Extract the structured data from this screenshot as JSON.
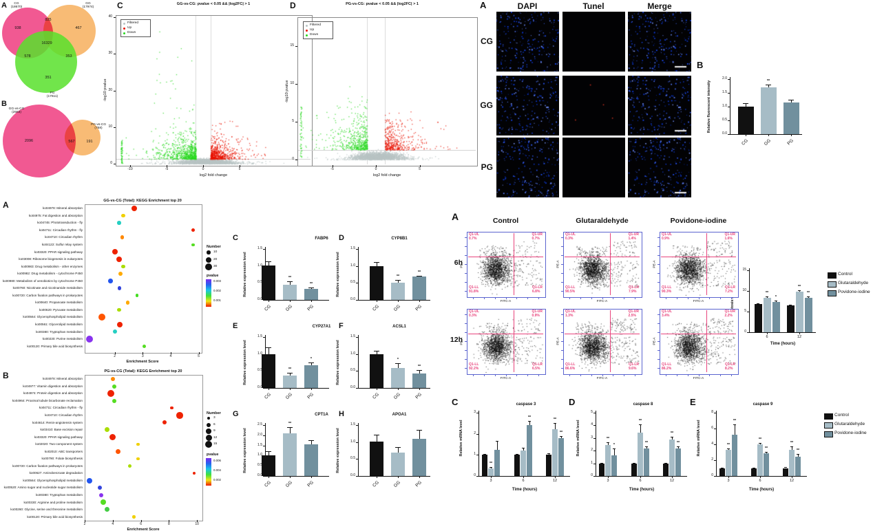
{
  "colors": {
    "control_black": "#111111",
    "glutaraldehyde_gray": "#a6bcc6",
    "povidone_slate": "#71909e",
    "venn_pink": "#f0508c",
    "venn_orange": "#f8b86e",
    "venn_green": "#58e12c",
    "volcano_up_red": "#e81400",
    "volcano_down_green": "#27d81e",
    "volcano_filtered_gray": "#b9c4c4",
    "flow_axis_blue": "#5a63cf",
    "flow_quadrant_pink": "#e8437c",
    "dapi_blue": "#2b50e0"
  },
  "tunel": {
    "panel": "A",
    "columns": [
      "DAPI",
      "Tunel",
      "Merge"
    ],
    "rows": [
      "CG",
      "GG",
      "PG"
    ]
  },
  "chart_data": [
    {
      "id": "venn_a",
      "type": "venn",
      "panel": "A",
      "sets": [
        {
          "label": "CG",
          "total": "(18670)"
        },
        {
          "label": "GG",
          "total": "(17974)"
        },
        {
          "label": "PG",
          "total": "(17611)"
        }
      ],
      "counts": {
        "cg_only": "938",
        "cg_gg": "825",
        "gg_only": "467",
        "center": "16329",
        "cg_pg": "578",
        "gg_pg": "353",
        "pg_only": "351"
      }
    },
    {
      "id": "venn_b",
      "type": "venn",
      "panel": "B",
      "sets": [
        {
          "label": "GG-vs-CG",
          "total": "(2663)"
        },
        {
          "label": "PG-vs-CG",
          "total": "(758)"
        }
      ],
      "counts": {
        "left_only": "2096",
        "overlap": "567",
        "right_only": "191"
      }
    },
    {
      "id": "volcano_gg_vs_cg",
      "type": "scatter",
      "subtype": "volcano",
      "panel": "C",
      "title": "GG-vs-CG: pvalue < 0.05 && |log2FC| > 1",
      "xlabel": "log2 fold change",
      "ylabel": "-log10 pvalue",
      "legend": [
        "Filtered",
        "Up",
        "Down"
      ],
      "xticks": [
        -10,
        -5,
        0,
        5
      ],
      "yticks": [
        0,
        10,
        20,
        30,
        40
      ],
      "xlim": [
        -12,
        9
      ],
      "ylim": [
        0,
        41
      ],
      "fc_threshold": [
        -1,
        1
      ]
    },
    {
      "id": "volcano_pg_vs_cg",
      "type": "scatter",
      "subtype": "volcano",
      "panel": "D",
      "title": "PG-vs-CG: pvalue < 0.05 && |log2FC| > 1",
      "xlabel": "log2 fold change",
      "ylabel": "-log10 pvalue",
      "legend": [
        "Filtered",
        "Up",
        "Down"
      ],
      "xticks": [
        -5,
        0,
        5
      ],
      "yticks": [
        0,
        5,
        10,
        15
      ],
      "xlim": [
        -9,
        11
      ],
      "ylim": [
        0,
        19
      ],
      "fc_threshold": [
        -1,
        1
      ]
    },
    {
      "id": "kegg_gg_vs_cg",
      "type": "scatter",
      "subtype": "kegg_dotplot",
      "panel": "A",
      "title": "GG-vs-CG (Total): KEGG Enrichment top 20",
      "xlabel": "Enrichment Score",
      "xticks": [
        2,
        3,
        4,
        5
      ],
      "legend_number": {
        "title": "Number",
        "sizes": [
          10,
          20,
          30
        ]
      },
      "legend_pvalue": {
        "title": "pvalue",
        "ticks": [
          "0.003",
          "0.002",
          "0.001"
        ]
      },
      "pathways": [
        {
          "label": "ko04978: Mineral absorption",
          "score": 2.7,
          "number": 20,
          "color": "#ee2200"
        },
        {
          "label": "ko04975: Fat digestion and absorption",
          "score": 2.3,
          "number": 10,
          "color": "#f0d000"
        },
        {
          "label": "ko04745: Phototransduction - fly",
          "score": 2.15,
          "number": 10,
          "color": "#25cfc2"
        },
        {
          "label": "ko04711: Circadian rhythm - fly",
          "score": 4.8,
          "number": 8,
          "color": "#ee2200"
        },
        {
          "label": "ko04710: Circadian rhythm",
          "score": 2.27,
          "number": 10,
          "color": "#ff8800"
        },
        {
          "label": "ko04122: Sulfur relay system",
          "score": 4.8,
          "number": 5,
          "color": "#55dd22"
        },
        {
          "label": "ko03320: PPAR signaling pathway",
          "score": 2.0,
          "number": 20,
          "color": "#ee2200"
        },
        {
          "label": "ko03008: Ribosome biogenesis in eukaryotes",
          "score": 2.15,
          "number": 20,
          "color": "#ee2200"
        },
        {
          "label": "ko00983: Drug metabolism - other enzymes",
          "score": 2.3,
          "number": 10,
          "color": "#aadd00"
        },
        {
          "label": "ko00982: Drug metabolism - cytochrome P450",
          "score": 2.2,
          "number": 12,
          "color": "#ffaa00"
        },
        {
          "label": "ko00980: Metabolism of xenobiotics by cytochrome P450",
          "score": 1.85,
          "number": 14,
          "color": "#2255ee"
        },
        {
          "label": "ko00760: Nicotinate and nicotinamide metabolism",
          "score": 2.17,
          "number": 10,
          "color": "#3344dd"
        },
        {
          "label": "ko00720: Carbon fixation pathways in prokaryotes",
          "score": 2.8,
          "number": 5,
          "color": "#44dd22"
        },
        {
          "label": "ko00640: Propanoate metabolism",
          "score": 2.46,
          "number": 10,
          "color": "#ffaa00"
        },
        {
          "label": "ko00620: Pyruvate metabolism",
          "score": 2.15,
          "number": 10,
          "color": "#aadd00"
        },
        {
          "label": "ko00564: Glycerophospholipid metabolism",
          "score": 1.53,
          "number": 28,
          "color": "#ff5500"
        },
        {
          "label": "ko00561: Glycerolipid metabolism",
          "score": 2.17,
          "number": 20,
          "color": "#ee2200"
        },
        {
          "label": "ko00380: Tryptophan metabolism",
          "score": 2.0,
          "number": 12,
          "color": "#25cfc2"
        },
        {
          "label": "ko00230: Purine metabolism",
          "score": 1.1,
          "number": 30,
          "color": "#8833ee"
        },
        {
          "label": "ko00120: Primary bile acid biosynthesis",
          "score": 3.05,
          "number": 10,
          "color": "#55dd22"
        }
      ]
    },
    {
      "id": "kegg_pg_vs_cg",
      "type": "scatter",
      "subtype": "kegg_dotplot",
      "panel": "B",
      "title": "PG-vs-CG (Total): KEGG Enrichment top 20",
      "xlabel": "Enrichment Score",
      "xticks": [
        2,
        4,
        6,
        8,
        10
      ],
      "legend_number": {
        "title": "Number",
        "sizes": [
          3,
          6,
          9,
          12,
          15
        ]
      },
      "legend_pvalue": {
        "title": "pvalue",
        "ticks": [
          "0.006",
          "0.004",
          "0.002"
        ]
      },
      "pathways": [
        {
          "label": "ko04978: Mineral absorption",
          "score": 4.0,
          "number": 6,
          "color": "#ff8800"
        },
        {
          "label": "ko04977: Vitamin digestion and absorption",
          "score": 4.1,
          "number": 6,
          "color": "#55dd22"
        },
        {
          "label": "ko04974: Protein digestion and absorption",
          "score": 3.86,
          "number": 15,
          "color": "#ee2200"
        },
        {
          "label": "ko04964: Proximal tubule bicarbonate reclamation",
          "score": 4.1,
          "number": 6,
          "color": "#55dd22"
        },
        {
          "label": "ko04711: Circadian rhythm - fly",
          "score": 8.2,
          "number": 3,
          "color": "#ee2200"
        },
        {
          "label": "ko04710: Circadian rhythm",
          "score": 8.76,
          "number": 13,
          "color": "#ee2200"
        },
        {
          "label": "ko04614: Renin-angiotensin system",
          "score": 7.7,
          "number": 6,
          "color": "#ee2200"
        },
        {
          "label": "ko03410: Base excision repair",
          "score": 3.57,
          "number": 8,
          "color": "#aadd00"
        },
        {
          "label": "ko03320: PPAR signaling pathway",
          "score": 3.97,
          "number": 12,
          "color": "#ee2200"
        },
        {
          "label": "ko02020: Two-component system",
          "score": 5.8,
          "number": 3,
          "color": "#f0d000"
        },
        {
          "label": "ko02010: ABC transporters",
          "score": 4.4,
          "number": 8,
          "color": "#ff5500"
        },
        {
          "label": "ko00790: Folate biosynthesis",
          "score": 5.8,
          "number": 3,
          "color": "#f0d000"
        },
        {
          "label": "ko00720: Carbon fixation pathways in prokaryotes",
          "score": 5.2,
          "number": 4,
          "color": "#aadd00"
        },
        {
          "label": "ko00627: Aminobenzoate degradation",
          "score": 9.8,
          "number": 3,
          "color": "#ee2200"
        },
        {
          "label": "ko00564: Glycerophospholipid metabolism",
          "score": 2.34,
          "number": 10,
          "color": "#2255ee"
        },
        {
          "label": "ko00520: Amino sugar and nucleotide sugar metabolism",
          "score": 3.1,
          "number": 6,
          "color": "#3344dd"
        },
        {
          "label": "ko00380: Tryptophan metabolism",
          "score": 3.2,
          "number": 6,
          "color": "#8833ee"
        },
        {
          "label": "ko00330: Arginine and proline metabolism",
          "score": 3.3,
          "number": 10,
          "color": "#55dd22"
        },
        {
          "label": "ko00260: Glycine, serine and threonine metabolism",
          "score": 3.6,
          "number": 8,
          "color": "#44cc44"
        },
        {
          "label": "ko00120: Primary bile acid biosynthesis",
          "score": 5.5,
          "number": 3,
          "color": "#f0d000"
        }
      ]
    },
    {
      "id": "qpcr_fabp6",
      "type": "bar",
      "panel": "C",
      "title": "FABP6",
      "ylabel": "Relative expression level",
      "categories": [
        "CG",
        "GG",
        "PG"
      ],
      "values": [
        1.02,
        0.45,
        0.32
      ],
      "errors": [
        0.12,
        0.1,
        0.05
      ],
      "sig": [
        "",
        "**",
        "**"
      ],
      "yticks": [
        "0.0",
        "0.5",
        "1.0",
        "1.5"
      ]
    },
    {
      "id": "qpcr_cyp8b1",
      "type": "bar",
      "panel": "D",
      "title": "CYP8B1",
      "ylabel": "Relative expression level",
      "categories": [
        "CG",
        "GG",
        "PG"
      ],
      "values": [
        1.0,
        0.5,
        0.68
      ],
      "errors": [
        0.12,
        0.08,
        0.04
      ],
      "sig": [
        "",
        "**",
        "**"
      ],
      "yticks": [
        "0.0",
        "0.5",
        "1.0",
        "1.5"
      ]
    },
    {
      "id": "qpcr_cyp27a1",
      "type": "bar",
      "panel": "E",
      "title": "CYP27A1",
      "ylabel": "Relative expression level",
      "categories": [
        "CG",
        "GG",
        "PG"
      ],
      "values": [
        1.0,
        0.37,
        0.67
      ],
      "errors": [
        0.2,
        0.08,
        0.08
      ],
      "sig": [
        "",
        "**",
        "*"
      ],
      "yticks": [
        "0.0",
        "0.5",
        "1.0",
        "1.5"
      ]
    },
    {
      "id": "qpcr_acsl1",
      "type": "bar",
      "panel": "F",
      "title": "ACSL1",
      "ylabel": "Relative expression level",
      "categories": [
        "CG",
        "GG",
        "PG"
      ],
      "values": [
        1.0,
        0.58,
        0.42
      ],
      "errors": [
        0.1,
        0.16,
        0.1
      ],
      "sig": [
        "",
        "*",
        "**"
      ],
      "yticks": [
        "0.0",
        "0.5",
        "1.0",
        "1.5"
      ]
    },
    {
      "id": "qpcr_cpt1a",
      "type": "bar",
      "panel": "G",
      "title": "CPT1A",
      "ylabel": "Relative expression level",
      "categories": [
        "CG",
        "GG",
        "PG"
      ],
      "values": [
        1.0,
        2.1,
        1.55
      ],
      "errors": [
        0.2,
        0.3,
        0.22
      ],
      "sig": [
        "",
        "**",
        ""
      ],
      "yticks": [
        "0.0",
        "0.5",
        "1.0",
        "1.5",
        "2.0",
        "2.5"
      ]
    },
    {
      "id": "qpcr_apoa1",
      "type": "bar",
      "panel": "H",
      "title": "APOA1",
      "ylabel": "Relative expression level",
      "categories": [
        "CG",
        "GG",
        "PG"
      ],
      "values": [
        1.02,
        0.68,
        1.1
      ],
      "errors": [
        0.2,
        0.18,
        0.25
      ],
      "sig": [
        "",
        "",
        ""
      ],
      "yticks": [
        "0.0",
        "0.5",
        "1.0",
        "1.5"
      ]
    },
    {
      "id": "tunel_fluorescence",
      "type": "bar",
      "panel": "B",
      "ylabel": "Relative fluorescent intensity",
      "categories": [
        "CG",
        "GG",
        "PG"
      ],
      "values": [
        1.0,
        1.7,
        1.15
      ],
      "errors": [
        0.12,
        0.1,
        0.1
      ],
      "sig": [
        "",
        "**",
        ""
      ],
      "yticks": [
        "0.0",
        "0.5",
        "1.0",
        "1.5",
        "2.0"
      ]
    },
    {
      "id": "flow_cytometry",
      "type": "scatter",
      "subtype": "flow",
      "panel": "A",
      "columns": [
        "Control",
        "Glutaraldehyde",
        "Povidone-iodine"
      ],
      "rows": [
        "6h",
        "12h"
      ],
      "xlabel": "FITC-A",
      "ylabel": "PE-A",
      "quadrant_labels": [
        "Q1-UL",
        "Q1-UR",
        "Q1-LL",
        "Q1-LR"
      ],
      "values": [
        [
          [
            "0.7%",
            "0.7%",
            "91.8%",
            "6.8%"
          ],
          [
            "0.3%",
            "1.4%",
            "90.5%",
            "7.9%"
          ],
          [
            "0.9%",
            "1.6%",
            "90.3%",
            "7.2%"
          ]
        ],
        [
          [
            "0.3%",
            "0.9%",
            "92.2%",
            "6.5%"
          ],
          [
            "1.3%",
            "2.5%",
            "86.6%",
            "9.6%"
          ],
          [
            "3.4%",
            "2.2%",
            "86.2%",
            "8.2%"
          ]
        ]
      ]
    },
    {
      "id": "apoptosis_rate",
      "type": "bar",
      "grouped": true,
      "panel": "B",
      "ylabel": "Apoptosis rate (%)",
      "xlabel": "Time (hours)",
      "categories": [
        "6",
        "12"
      ],
      "yticks": [
        "0",
        "5",
        "10",
        "15"
      ],
      "series": [
        {
          "name": "Control",
          "values": [
            6.8,
            6.5
          ],
          "errors": [
            0.2,
            0.2
          ],
          "sig": [
            "",
            ""
          ]
        },
        {
          "name": "Glutaraldehyde",
          "values": [
            8.3,
            9.8
          ],
          "errors": [
            0.3,
            0.3
          ],
          "sig": [
            "**",
            "**"
          ]
        },
        {
          "name": "Povidone-iodine",
          "values": [
            7.4,
            8.4
          ],
          "errors": [
            0.25,
            0.25
          ],
          "sig": [
            "*",
            "**"
          ]
        }
      ]
    },
    {
      "id": "caspase3",
      "type": "bar",
      "grouped": true,
      "panel": "C",
      "title": "caspase 3",
      "ylabel": "Relative mRNA level",
      "xlabel": "Time (hours)",
      "categories": [
        "3",
        "6",
        "12"
      ],
      "yticks": [
        "0",
        "1",
        "2",
        "3"
      ],
      "series": [
        {
          "name": "Control",
          "values": [
            1.0,
            1.0,
            1.0
          ],
          "errors": [
            0.05,
            0.05,
            0.08
          ],
          "sig": [
            "",
            "",
            ""
          ]
        },
        {
          "name": "Glutaraldehyde",
          "values": [
            0.35,
            1.2,
            2.2
          ],
          "errors": [
            0.08,
            0.15,
            0.3
          ],
          "sig": [
            "**",
            "",
            "**"
          ]
        },
        {
          "name": "Povidone-iodine",
          "values": [
            1.25,
            2.4,
            1.8
          ],
          "errors": [
            0.4,
            0.2,
            0.1
          ],
          "sig": [
            "",
            "**",
            "**"
          ]
        }
      ]
    },
    {
      "id": "caspase8",
      "type": "bar",
      "grouped": true,
      "panel": "D",
      "title": "caspase 8",
      "ylabel": "Relative mRNA level",
      "xlabel": "Time (hours)",
      "categories": [
        "3",
        "6",
        "12"
      ],
      "yticks": [
        "0",
        "1",
        "2",
        "3",
        "4",
        "5"
      ],
      "series": [
        {
          "name": "Control",
          "values": [
            1.0,
            1.0,
            1.0
          ],
          "errors": [
            0.05,
            0.05,
            0.05
          ],
          "sig": [
            "",
            "",
            ""
          ]
        },
        {
          "name": "Glutaraldehyde",
          "values": [
            2.45,
            3.4,
            2.9
          ],
          "errors": [
            0.2,
            0.7,
            0.2
          ],
          "sig": [
            "**",
            "**",
            "**"
          ]
        },
        {
          "name": "Povidone-iodine",
          "values": [
            1.65,
            2.15,
            2.15
          ],
          "errors": [
            0.55,
            0.2,
            0.2
          ],
          "sig": [
            "*",
            "**",
            "**"
          ]
        }
      ]
    },
    {
      "id": "caspase9",
      "type": "bar",
      "grouped": true,
      "panel": "E",
      "title": "caspase 9",
      "ylabel": "Relative mRNA level",
      "xlabel": "Time (hours)",
      "categories": [
        "3",
        "6",
        "12"
      ],
      "yticks": [
        "0",
        "2",
        "4",
        "6",
        "8"
      ],
      "series": [
        {
          "name": "Control",
          "values": [
            1.0,
            1.0,
            1.0
          ],
          "errors": [
            0.05,
            0.05,
            0.1
          ],
          "sig": [
            "",
            "",
            ""
          ]
        },
        {
          "name": "Glutaraldehyde",
          "values": [
            3.3,
            4.0,
            3.3
          ],
          "errors": [
            0.2,
            0.2,
            0.4
          ],
          "sig": [
            "**",
            "**",
            "**"
          ]
        },
        {
          "name": "Povidone-iodine",
          "values": [
            5.2,
            2.9,
            2.4
          ],
          "errors": [
            1.3,
            0.15,
            0.35
          ],
          "sig": [
            "**",
            "**",
            "**"
          ]
        }
      ]
    }
  ]
}
